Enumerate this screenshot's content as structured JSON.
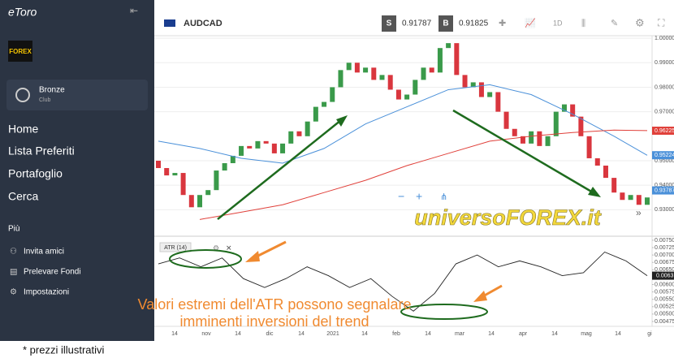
{
  "sidebar": {
    "logo": "eToro",
    "badge": "FOREX",
    "tier": "Bronze",
    "tier_sub": "Club",
    "menu": [
      "Home",
      "Lista Preferiti",
      "Portafoglio",
      "Cerca"
    ],
    "section": "Più",
    "links": [
      "Invita amici",
      "Prelevare Fondi",
      "Impostazioni"
    ]
  },
  "toolbar": {
    "symbol": "AUDCAD",
    "sell_label": "S",
    "sell": 0.91787,
    "buy_label": "B",
    "buy": 0.91825,
    "timeframe": "1D"
  },
  "chart_data": [
    {
      "type": "candlestick",
      "x_labels": [
        "14",
        "nov",
        "14",
        "dic",
        "14",
        "2021",
        "14",
        "feb",
        "14",
        "mar",
        "14",
        "apr",
        "14",
        "mag",
        "14",
        "gi"
      ],
      "open": [
        0.95,
        0.947,
        0.944,
        0.945,
        0.936,
        0.931,
        0.936,
        0.938,
        0.946,
        0.949,
        0.952,
        0.956,
        0.955,
        0.958,
        0.957,
        0.953,
        0.957,
        0.962,
        0.96,
        0.966,
        0.972,
        0.974,
        0.98,
        0.987,
        0.99,
        0.986,
        0.988,
        0.983,
        0.985,
        0.979,
        0.975,
        0.977,
        0.983,
        0.988,
        0.986,
        0.996,
        0.998,
        0.985,
        0.98,
        0.982,
        0.976,
        0.978,
        0.97,
        0.963,
        0.96,
        0.957,
        0.962,
        0.956,
        0.96,
        0.97,
        0.973,
        0.968,
        0.96,
        0.951,
        0.948,
        0.943,
        0.937,
        0.934,
        0.936,
        0.932
      ],
      "close": [
        0.947,
        0.944,
        0.945,
        0.936,
        0.931,
        0.936,
        0.938,
        0.946,
        0.949,
        0.952,
        0.956,
        0.955,
        0.958,
        0.957,
        0.953,
        0.957,
        0.962,
        0.96,
        0.966,
        0.972,
        0.974,
        0.98,
        0.987,
        0.99,
        0.986,
        0.988,
        0.983,
        0.985,
        0.979,
        0.975,
        0.977,
        0.983,
        0.988,
        0.986,
        0.996,
        0.998,
        0.985,
        0.98,
        0.982,
        0.976,
        0.978,
        0.97,
        0.963,
        0.96,
        0.957,
        0.962,
        0.956,
        0.96,
        0.97,
        0.973,
        0.968,
        0.96,
        0.951,
        0.948,
        0.943,
        0.937,
        0.934,
        0.936,
        0.932,
        0.935
      ],
      "up_color": "#3a9a4a",
      "down_color": "#d9363e",
      "series": [
        {
          "color": "#4a90d9",
          "x": [
            0,
            5,
            10,
            15,
            20,
            25,
            30,
            35,
            40,
            45,
            50,
            55,
            59
          ],
          "values": [
            0.958,
            0.955,
            0.951,
            0.949,
            0.955,
            0.965,
            0.972,
            0.979,
            0.981,
            0.977,
            0.969,
            0.96,
            0.9522
          ]
        },
        {
          "color": "#e0403a",
          "x": [
            5,
            10,
            15,
            20,
            25,
            30,
            35,
            40,
            45,
            50,
            55,
            59
          ],
          "values": [
            0.926,
            0.929,
            0.932,
            0.937,
            0.942,
            0.948,
            0.953,
            0.958,
            0.96,
            0.9615,
            0.9625,
            0.9623
          ]
        }
      ],
      "ylim": [
        0.9195,
        1.0007
      ],
      "yticks": [
        {
          "value": 1,
          "label": "1.00000"
        },
        {
          "value": 0.99,
          "label": "0.99000"
        },
        {
          "value": 0.98,
          "label": "0.98000"
        },
        {
          "value": 0.97,
          "label": "0.97000"
        },
        {
          "value": 0.95,
          "label": "0.95000"
        },
        {
          "value": 0.94,
          "label": "0.94000"
        },
        {
          "value": 0.93,
          "label": "0.93000"
        }
      ],
      "price_markers": [
        {
          "value": 0.96225,
          "color": "#e0403a"
        },
        {
          "value": 0.95224,
          "color": "#4a90d9"
        },
        {
          "value": 0.93787,
          "color": "#4a90d9"
        }
      ]
    },
    {
      "type": "line",
      "title": "ATR (14)",
      "color": "#222222",
      "values": [
        0.0067,
        0.0069,
        0.0066,
        0.0069,
        0.0062,
        0.0059,
        0.0062,
        0.0066,
        0.0063,
        0.0059,
        0.0062,
        0.0056,
        0.0051,
        0.0057,
        0.0067,
        0.007,
        0.0066,
        0.0068,
        0.0066,
        0.0063,
        0.0064,
        0.0071,
        0.0068,
        0.0063
      ],
      "ylim": [
        0.00464,
        0.00758
      ],
      "yticks": [
        {
          "value": 0.0075,
          "label": "0.00750"
        },
        {
          "value": 0.00725,
          "label": "0.00725"
        },
        {
          "value": 0.007,
          "label": "0.00700"
        },
        {
          "value": 0.00675,
          "label": "0.00675"
        },
        {
          "value": 0.0065,
          "label": "0.00650"
        },
        {
          "value": 0.006,
          "label": "0.00600"
        },
        {
          "value": 0.00575,
          "label": "0.00575"
        },
        {
          "value": 0.0055,
          "label": "0.00550"
        },
        {
          "value": 0.00525,
          "label": "0.00525"
        },
        {
          "value": 0.005,
          "label": "0.00500"
        },
        {
          "value": 0.00475,
          "label": "0.00475"
        }
      ],
      "marker": 0.0063
    }
  ],
  "watermark": "universoFOREX.it",
  "annotation": [
    "Valori estremi dell'ATR possono segnalare",
    "imminenti inversioni del trend"
  ],
  "footnote": "* prezzi illustrativi"
}
